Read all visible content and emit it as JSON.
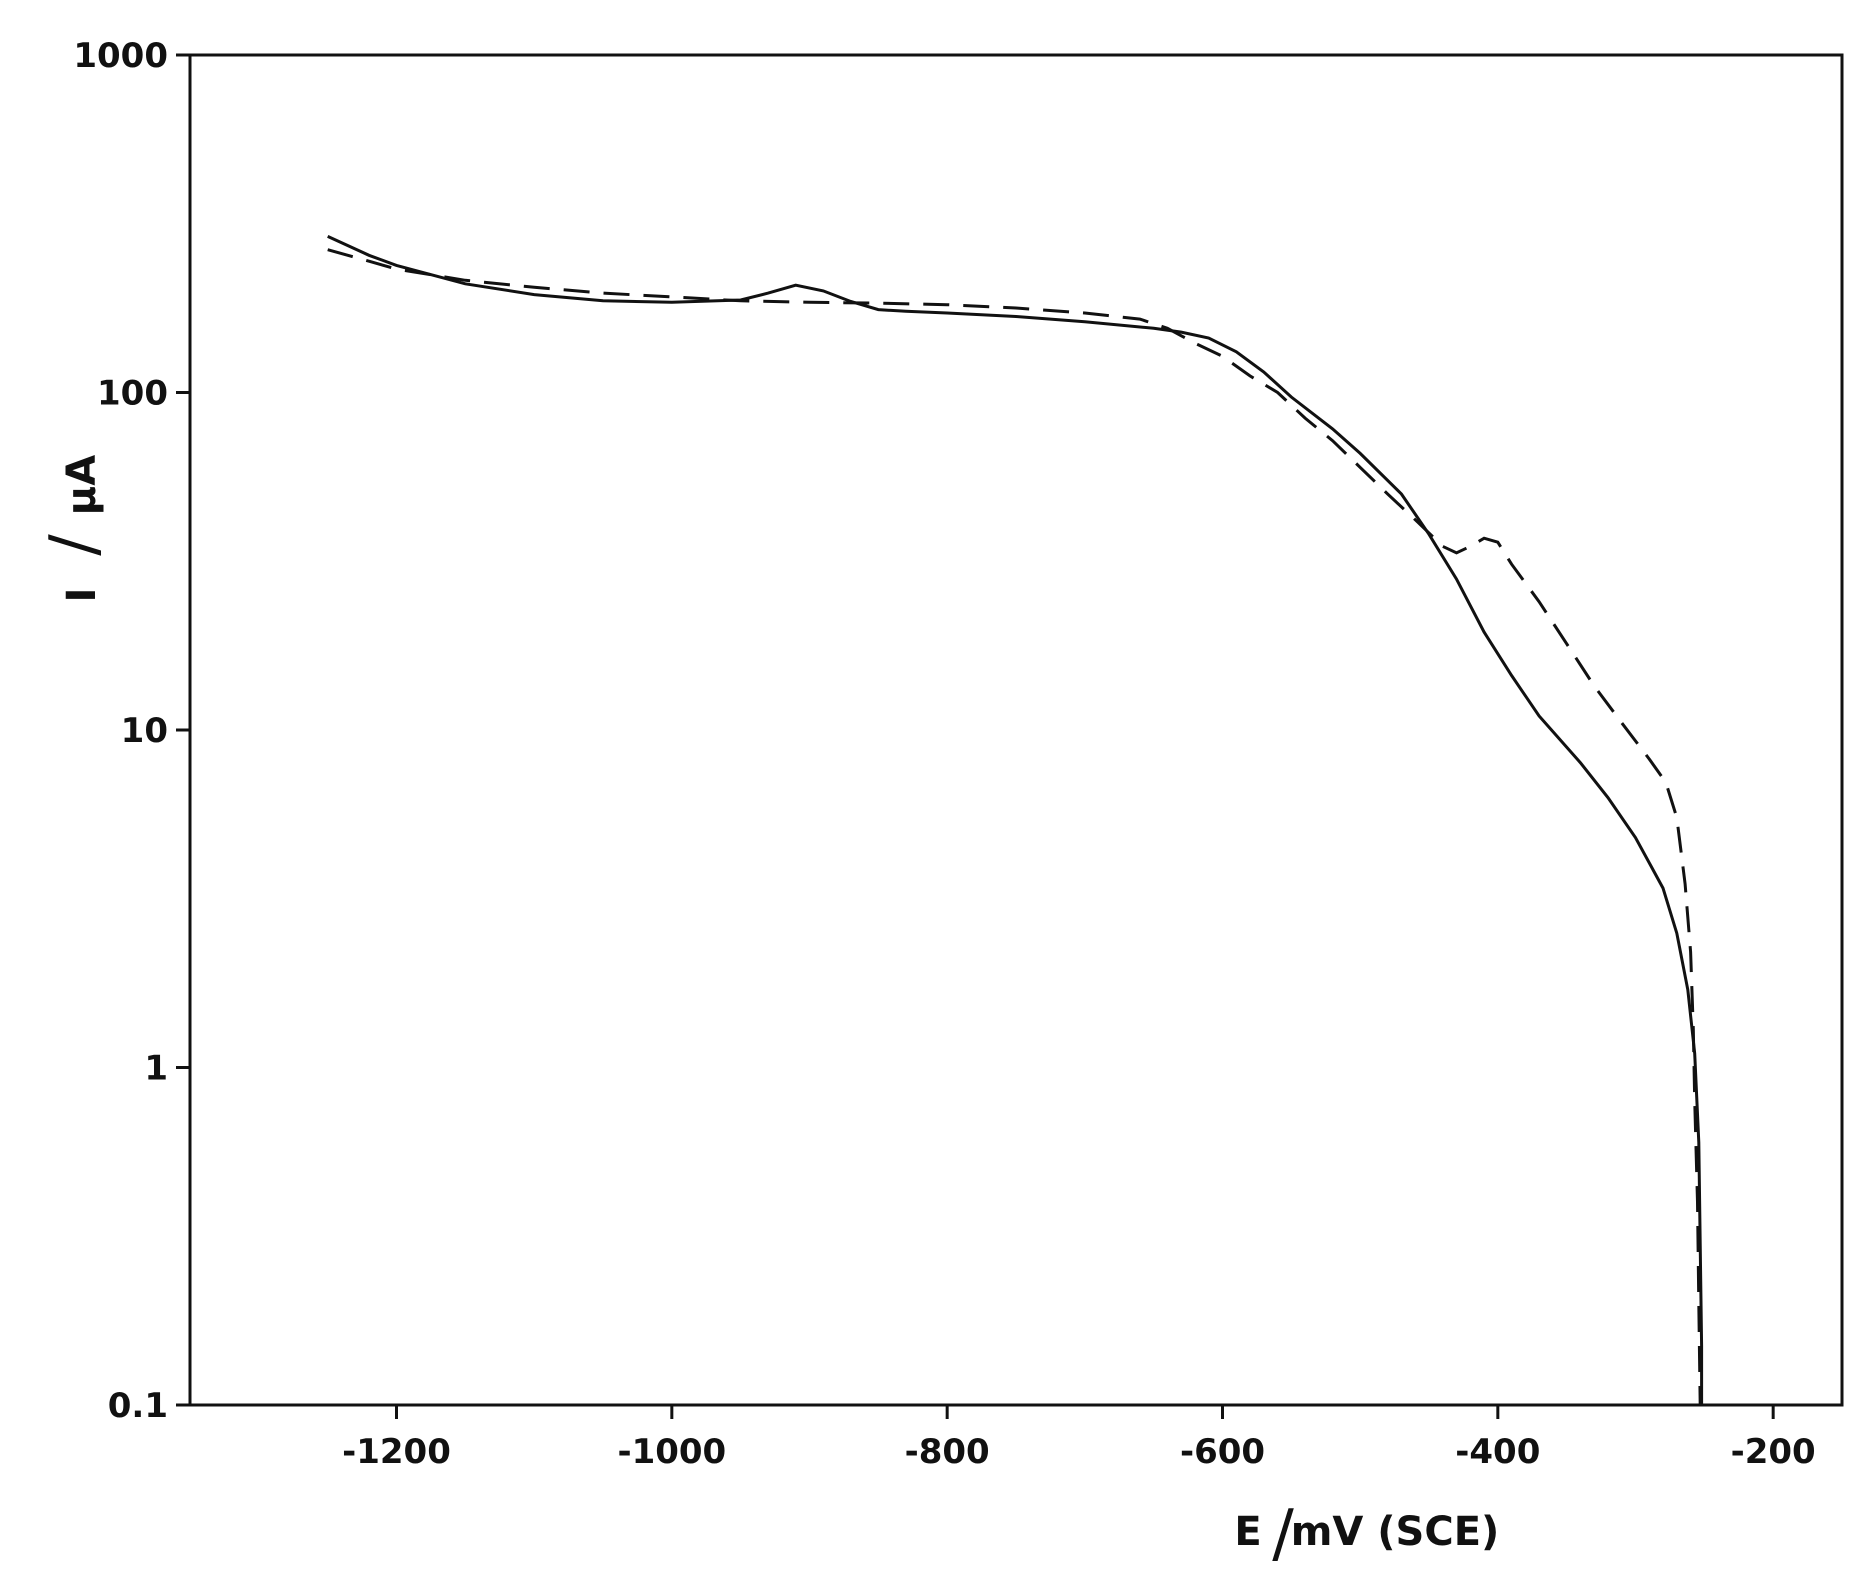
{
  "chart_data": {
    "type": "line",
    "title": "",
    "xlabel": "E / mV (SCE)",
    "xlabel_parts": {
      "symbol": "E",
      "slash": "/",
      "unit": "mV (SCE)"
    },
    "ylabel": "I / μA",
    "ylabel_parts": {
      "symbol": "I",
      "slash": "/",
      "unit": "μA"
    },
    "xlim": [
      -1350,
      -150
    ],
    "ylim": [
      0.1,
      1000
    ],
    "yscale": "log",
    "grid": false,
    "legend": "none",
    "x_ticks": [
      "-1200",
      "-1000",
      "-800",
      "-600",
      "-400",
      "-200"
    ],
    "x_tick_values": [
      -1200,
      -1000,
      -800,
      -600,
      -400,
      -200
    ],
    "y_ticks": [
      "1000",
      "100",
      "10",
      "1",
      "0.1"
    ],
    "y_tick_values": [
      1000,
      100,
      10,
      1,
      0.1
    ],
    "series": [
      {
        "style": "solid",
        "color": "#111111",
        "points": [
          [
            -1250,
            290
          ],
          [
            -1220,
            255
          ],
          [
            -1200,
            238
          ],
          [
            -1150,
            210
          ],
          [
            -1100,
            195
          ],
          [
            -1050,
            187
          ],
          [
            -1000,
            185
          ],
          [
            -950,
            188
          ],
          [
            -930,
            197
          ],
          [
            -910,
            208
          ],
          [
            -890,
            200
          ],
          [
            -870,
            186
          ],
          [
            -850,
            176
          ],
          [
            -830,
            174
          ],
          [
            -800,
            172
          ],
          [
            -750,
            168
          ],
          [
            -700,
            162
          ],
          [
            -650,
            155
          ],
          [
            -630,
            151
          ],
          [
            -610,
            145
          ],
          [
            -590,
            132
          ],
          [
            -570,
            115
          ],
          [
            -550,
            97
          ],
          [
            -520,
            78
          ],
          [
            -500,
            66
          ],
          [
            -470,
            50
          ],
          [
            -450,
            38
          ],
          [
            -430,
            28
          ],
          [
            -410,
            19.5
          ],
          [
            -390,
            14.5
          ],
          [
            -370,
            11
          ],
          [
            -340,
            8
          ],
          [
            -320,
            6.3
          ],
          [
            -300,
            4.8
          ],
          [
            -280,
            3.4
          ],
          [
            -270,
            2.5
          ],
          [
            -262,
            1.7
          ],
          [
            -257,
            1.1
          ],
          [
            -254,
            0.6
          ],
          [
            -253,
            0.3
          ],
          [
            -252,
            0.15
          ],
          [
            -252,
            0.1
          ]
        ]
      },
      {
        "style": "dashed",
        "color": "#111111",
        "points": [
          [
            -1250,
            265
          ],
          [
            -1220,
            245
          ],
          [
            -1200,
            232
          ],
          [
            -1150,
            215
          ],
          [
            -1100,
            205
          ],
          [
            -1050,
            197
          ],
          [
            -1000,
            192
          ],
          [
            -950,
            187
          ],
          [
            -900,
            185
          ],
          [
            -850,
            184
          ],
          [
            -800,
            182
          ],
          [
            -750,
            178
          ],
          [
            -700,
            172
          ],
          [
            -660,
            165
          ],
          [
            -640,
            155
          ],
          [
            -620,
            140
          ],
          [
            -600,
            128
          ],
          [
            -580,
            112
          ],
          [
            -560,
            100
          ],
          [
            -540,
            84
          ],
          [
            -520,
            72
          ],
          [
            -500,
            60
          ],
          [
            -480,
            50
          ],
          [
            -460,
            42
          ],
          [
            -440,
            35
          ],
          [
            -430,
            33.5
          ],
          [
            -420,
            35
          ],
          [
            -410,
            37
          ],
          [
            -400,
            36
          ],
          [
            -390,
            31
          ],
          [
            -370,
            24
          ],
          [
            -350,
            18
          ],
          [
            -330,
            13.5
          ],
          [
            -310,
            10.5
          ],
          [
            -290,
            8.2
          ],
          [
            -278,
            7
          ],
          [
            -270,
            5.5
          ],
          [
            -264,
            3.5
          ],
          [
            -260,
            2.2
          ],
          [
            -258,
            1.3
          ],
          [
            -257,
            0.8
          ],
          [
            -255,
            0.4
          ],
          [
            -254,
            0.2
          ],
          [
            -253,
            0.1
          ]
        ]
      }
    ]
  }
}
